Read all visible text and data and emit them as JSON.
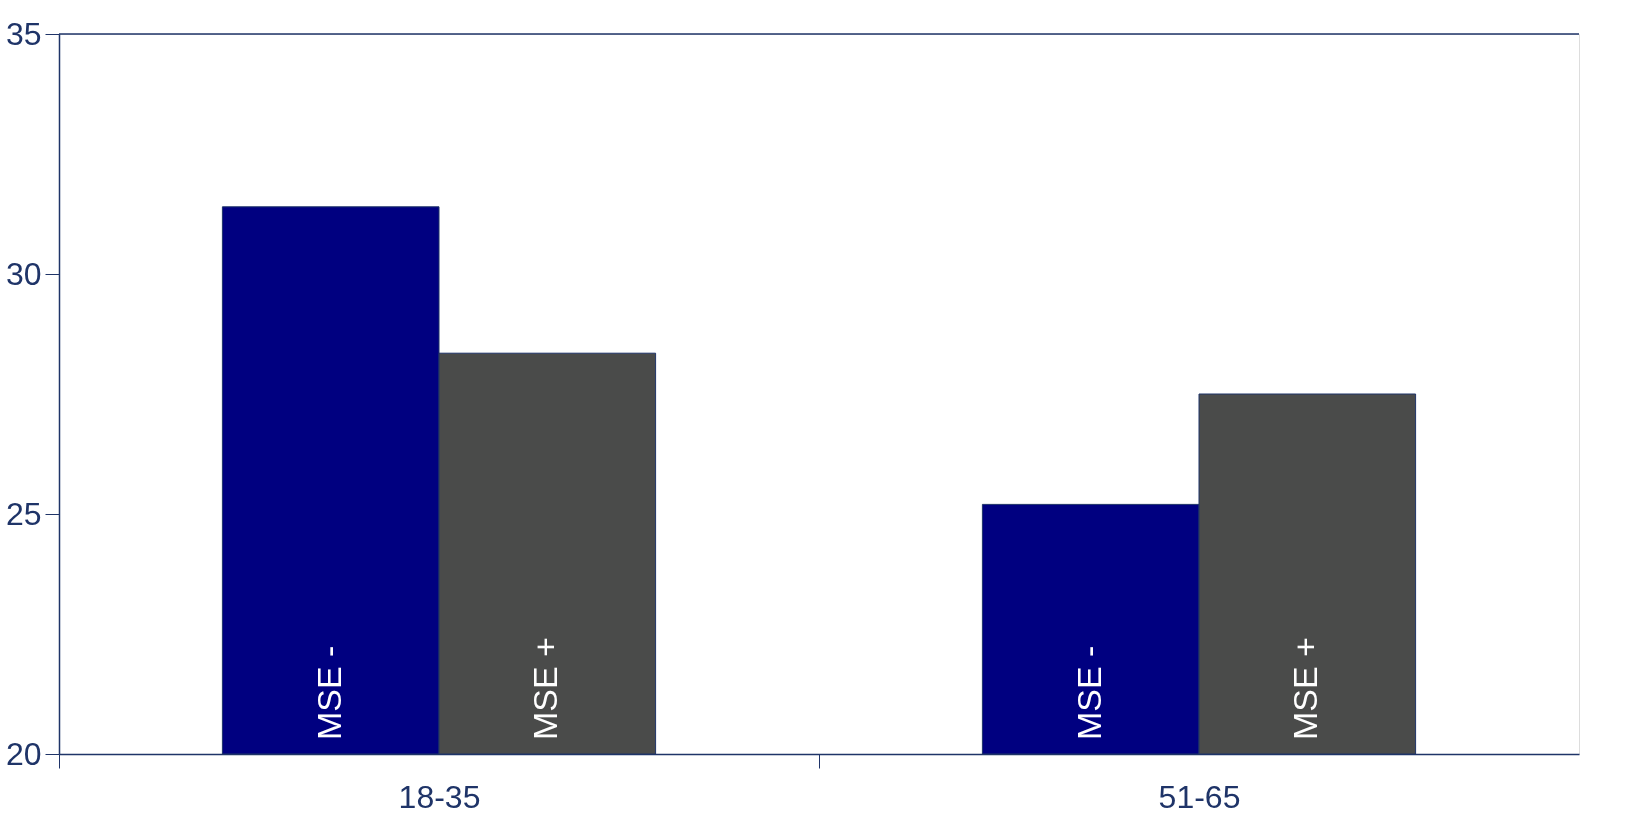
{
  "chart_data": {
    "type": "bar",
    "categories": [
      "18-35",
      "51-65"
    ],
    "series": [
      {
        "name": "MSE -",
        "color": "#000080",
        "values": [
          31.4,
          25.2
        ]
      },
      {
        "name": "MSE +",
        "color": "#4a4b4a",
        "values": [
          28.35,
          27.5
        ]
      }
    ],
    "ylim": [
      20,
      35
    ],
    "yticks": [
      20,
      25,
      30,
      35
    ],
    "grid": false,
    "legend": false
  }
}
